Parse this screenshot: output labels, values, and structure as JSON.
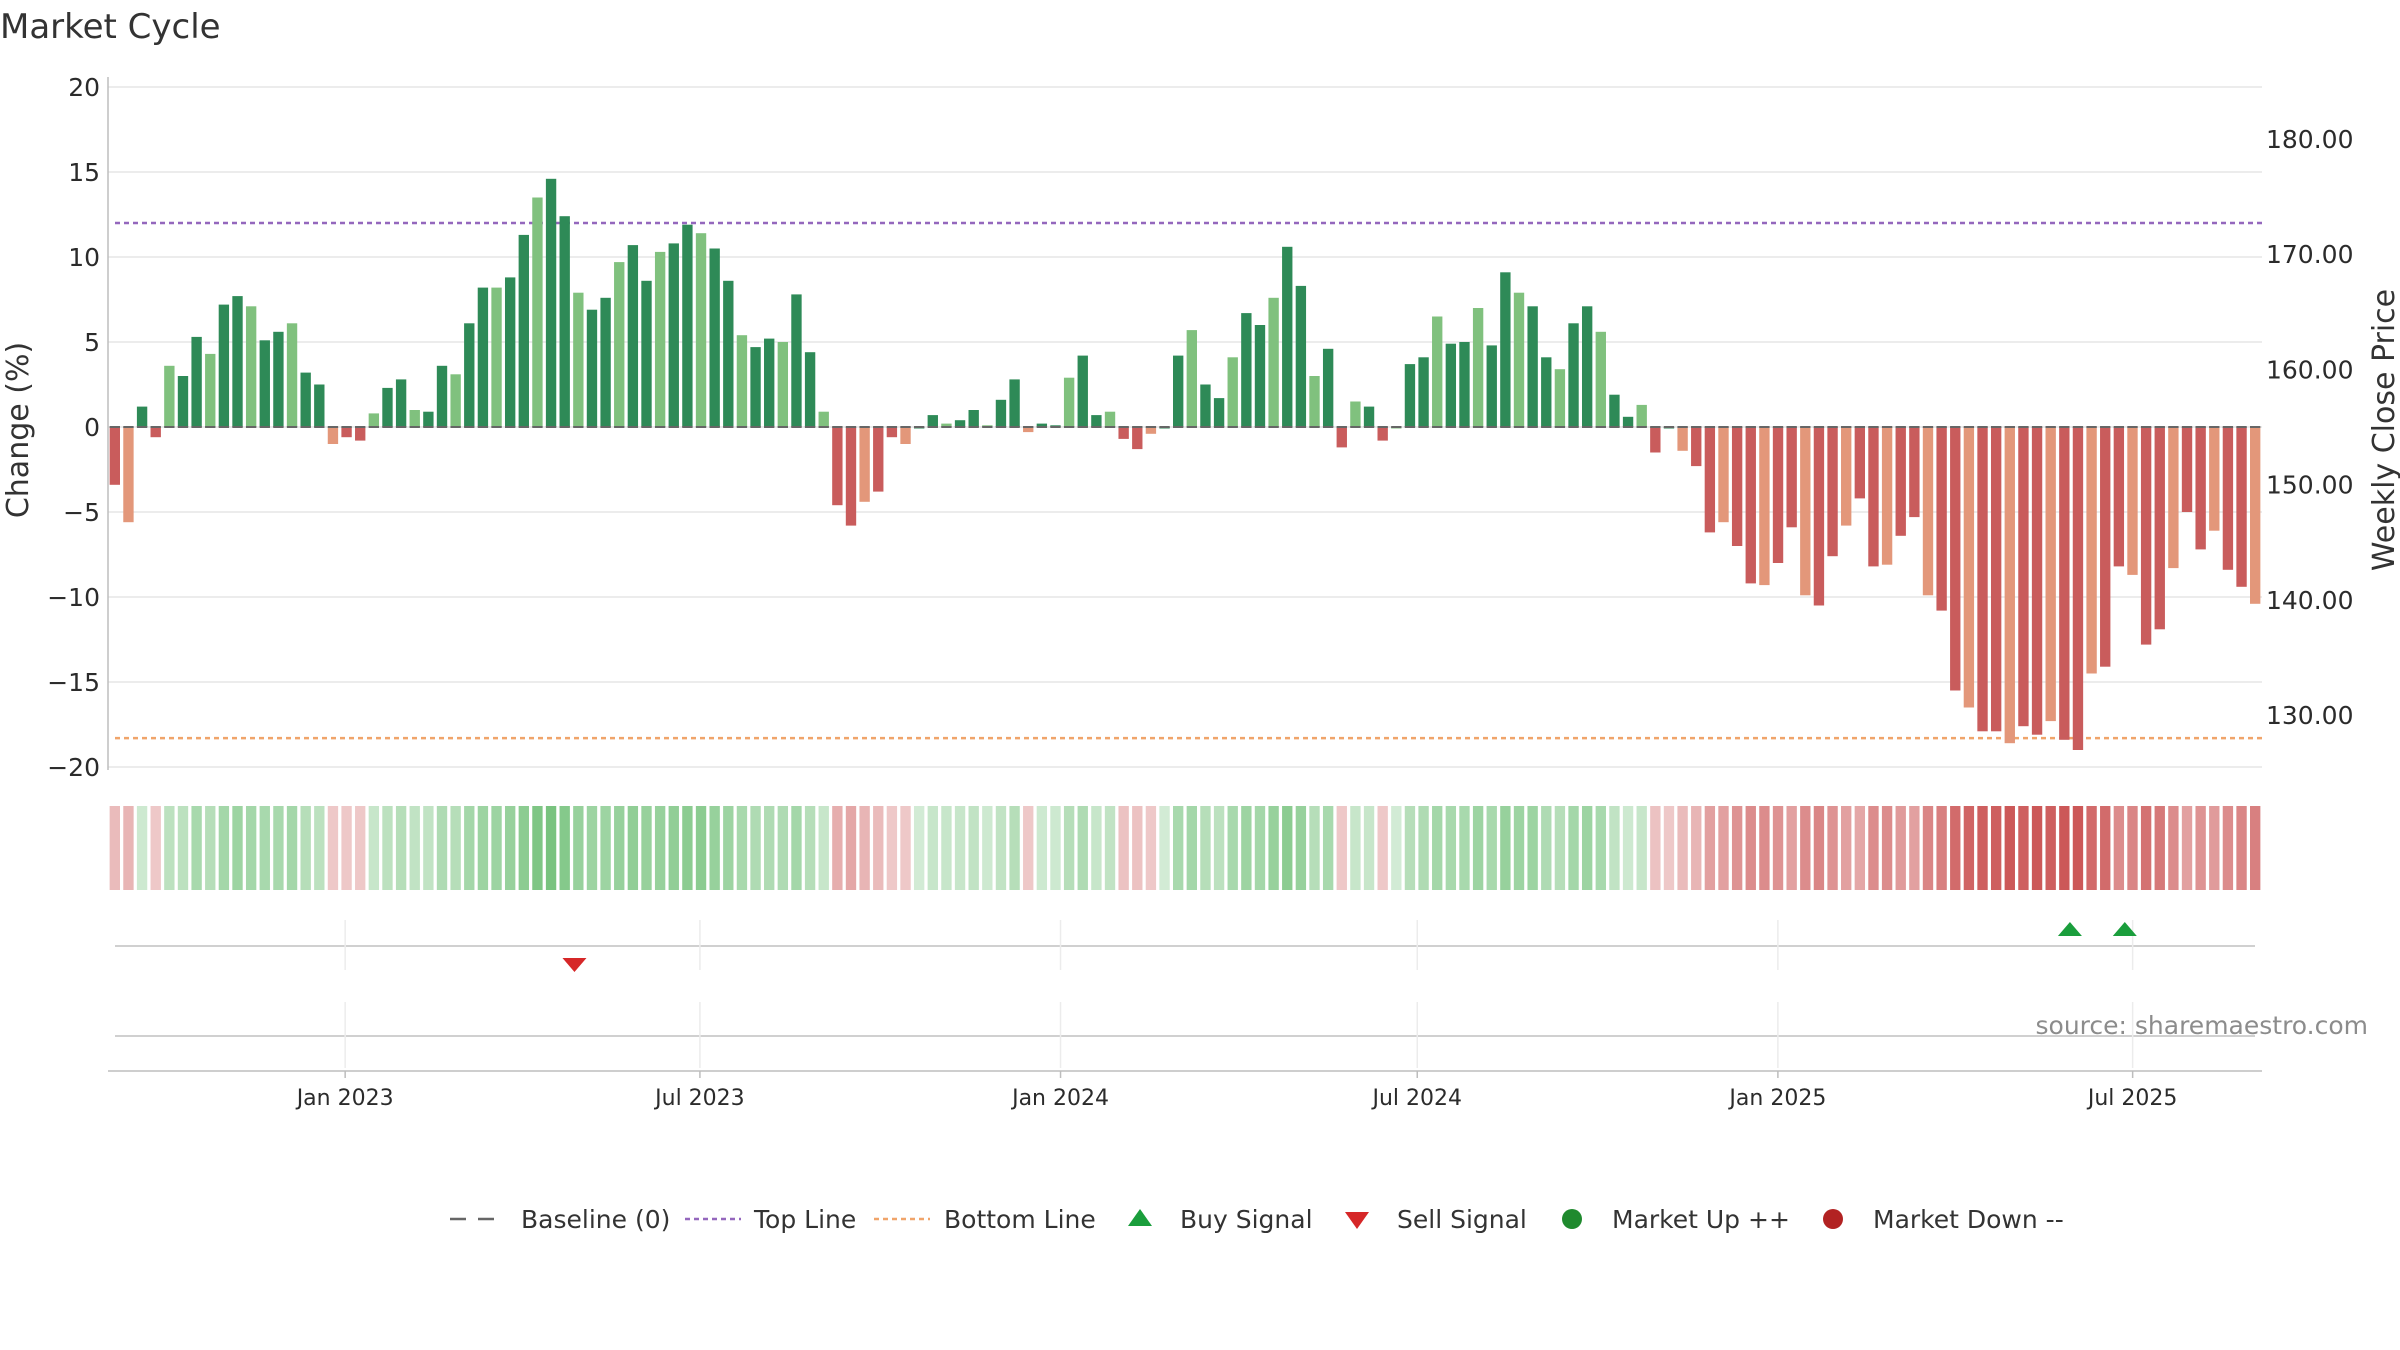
{
  "chart_data": {
    "type": "bar",
    "title": "Market Cycle",
    "ylabel": "Change (%)",
    "y2label": "Weekly Close Price",
    "ylim": [
      -20,
      20
    ],
    "yticks": [
      20,
      15,
      10,
      5,
      0,
      -5,
      -10,
      -15,
      -20
    ],
    "ytick_labels": [
      "20",
      "15",
      "10",
      "5",
      "0",
      "−5",
      "−10",
      "−15",
      "−20"
    ],
    "y2ticks": [
      "180.00",
      "170.00",
      "160.00",
      "150.00",
      "140.00",
      "130.00"
    ],
    "y2lim": [
      125.5,
      184.5
    ],
    "x_start": "2022-09-02",
    "x_end": "2025-09-05",
    "xticks": [
      {
        "date": "2023-01-01",
        "label": "Jan 2023"
      },
      {
        "date": "2023-07-01",
        "label": "Jul 2023"
      },
      {
        "date": "2024-01-01",
        "label": "Jan 2024"
      },
      {
        "date": "2024-07-01",
        "label": "Jul 2024"
      },
      {
        "date": "2025-01-01",
        "label": "Jan 2025"
      },
      {
        "date": "2025-07-01",
        "label": "Jul 2025"
      }
    ],
    "top_line": 12,
    "bottom_line": -18.3,
    "baseline": 0,
    "grid": true,
    "values": [
      -3.4,
      -5.6,
      1.2,
      -0.6,
      3.6,
      3.0,
      5.3,
      4.3,
      7.2,
      7.7,
      7.1,
      5.1,
      5.6,
      6.1,
      3.2,
      2.5,
      -1.0,
      -0.6,
      -0.8,
      0.8,
      2.3,
      2.8,
      1.0,
      0.9,
      3.6,
      3.1,
      6.1,
      8.2,
      8.2,
      8.8,
      11.3,
      13.5,
      14.6,
      12.4,
      7.9,
      6.9,
      7.6,
      9.7,
      10.7,
      8.6,
      10.3,
      10.8,
      11.9,
      11.4,
      10.5,
      8.6,
      5.4,
      4.7,
      5.2,
      5.0,
      7.8,
      4.4,
      0.9,
      -4.6,
      -5.8,
      -4.4,
      -3.8,
      -0.6,
      -1.0,
      0.0,
      0.7,
      0.2,
      0.4,
      1.0,
      0.1,
      1.6,
      2.8,
      -0.3,
      0.2,
      0.1,
      2.9,
      4.2,
      0.7,
      0.9,
      -0.7,
      -1.3,
      -0.4,
      0.0,
      4.2,
      5.7,
      2.5,
      1.7,
      4.1,
      6.7,
      6.0,
      7.6,
      10.6,
      8.3,
      3.0,
      4.6,
      -1.2,
      1.5,
      1.2,
      -0.8,
      0.0,
      3.7,
      4.1,
      6.5,
      4.9,
      5.0,
      7.0,
      4.8,
      9.1,
      7.9,
      7.1,
      4.1,
      3.4,
      6.1,
      7.1,
      5.6,
      1.9,
      0.6,
      1.3,
      -1.5,
      0.0,
      -1.4,
      -2.3,
      -6.2,
      -5.6,
      -7.0,
      -9.2,
      -9.3,
      -8.0,
      -5.9,
      -9.9,
      -10.5,
      -7.6,
      -5.8,
      -4.2,
      -8.2,
      -8.1,
      -6.4,
      -5.3,
      -9.9,
      -10.8,
      -15.5,
      -16.5,
      -17.9,
      -17.9,
      -18.6,
      -17.6,
      -18.1,
      -17.3,
      -18.4,
      -19.0,
      -14.5,
      -14.1,
      -8.2,
      -8.7,
      -12.8,
      -11.9,
      -8.3,
      -5.0,
      -7.2,
      -6.1,
      -8.4,
      -9.4,
      -10.4
    ],
    "strength_strip": [
      -0.25,
      -0.3,
      0.15,
      -0.15,
      0.3,
      0.3,
      0.45,
      0.35,
      0.5,
      0.55,
      0.5,
      0.45,
      0.45,
      0.5,
      0.35,
      0.3,
      -0.15,
      -0.15,
      -0.15,
      0.2,
      0.3,
      0.35,
      0.25,
      0.25,
      0.4,
      0.35,
      0.5,
      0.55,
      0.55,
      0.6,
      0.7,
      0.8,
      0.85,
      0.75,
      0.6,
      0.55,
      0.55,
      0.6,
      0.65,
      0.6,
      0.6,
      0.65,
      0.7,
      0.7,
      0.6,
      0.55,
      0.45,
      0.4,
      0.4,
      0.4,
      0.5,
      0.35,
      0.2,
      -0.35,
      -0.4,
      -0.3,
      -0.25,
      -0.15,
      -0.15,
      0.1,
      0.2,
      0.2,
      0.2,
      0.25,
      0.15,
      0.25,
      0.35,
      -0.15,
      0.15,
      0.15,
      0.35,
      0.4,
      0.2,
      0.25,
      -0.2,
      -0.2,
      -0.15,
      0.1,
      0.45,
      0.5,
      0.35,
      0.3,
      0.45,
      0.55,
      0.5,
      0.6,
      0.7,
      0.6,
      0.35,
      0.45,
      -0.15,
      0.2,
      0.2,
      -0.15,
      0.1,
      0.35,
      0.4,
      0.5,
      0.45,
      0.45,
      0.55,
      0.45,
      0.6,
      0.55,
      0.55,
      0.4,
      0.35,
      0.5,
      0.55,
      0.45,
      0.25,
      0.15,
      0.2,
      -0.2,
      -0.15,
      -0.25,
      -0.3,
      -0.45,
      -0.45,
      -0.55,
      -0.6,
      -0.6,
      -0.55,
      -0.45,
      -0.6,
      -0.65,
      -0.55,
      -0.45,
      -0.4,
      -0.6,
      -0.6,
      -0.5,
      -0.45,
      -0.65,
      -0.7,
      -0.85,
      -0.9,
      -0.95,
      -0.95,
      -1.0,
      -0.95,
      -1.0,
      -0.95,
      -1.0,
      -1.0,
      -0.85,
      -0.85,
      -0.6,
      -0.65,
      -0.8,
      -0.75,
      -0.6,
      -0.45,
      -0.55,
      -0.5,
      -0.6,
      -0.65,
      -0.7
    ],
    "sell_signals": [
      {
        "date": "2023-04-28"
      }
    ],
    "buy_signals": [
      {
        "date": "2025-05-30"
      },
      {
        "date": "2025-06-27"
      }
    ],
    "source_note": "source: sharemaestro.com",
    "legend_position": "bottom",
    "legend": [
      {
        "key": "baseline",
        "label": "Baseline (0)"
      },
      {
        "key": "top",
        "label": "Top Line"
      },
      {
        "key": "bottom",
        "label": "Bottom Line"
      },
      {
        "key": "buy",
        "label": "Buy Signal"
      },
      {
        "key": "sell",
        "label": "Sell Signal"
      },
      {
        "key": "up",
        "label": "Market Up ++"
      },
      {
        "key": "down",
        "label": "Market Down --"
      }
    ],
    "colors": {
      "up_dark": "#2e8a57",
      "up_light": "#80c17e",
      "down_dark": "#c95c5c",
      "down_light": "#e3977a",
      "top_line": "#9467bd",
      "bottom_line": "#f0a46a",
      "baseline": "#666666",
      "buy": "#1a9e3c",
      "sell": "#d62728",
      "market_up": "#1f8a2e",
      "market_down": "#b22222",
      "strip_up": "#5fb867",
      "strip_down": "#c94f4f",
      "grid": "#e6e6e6"
    }
  }
}
